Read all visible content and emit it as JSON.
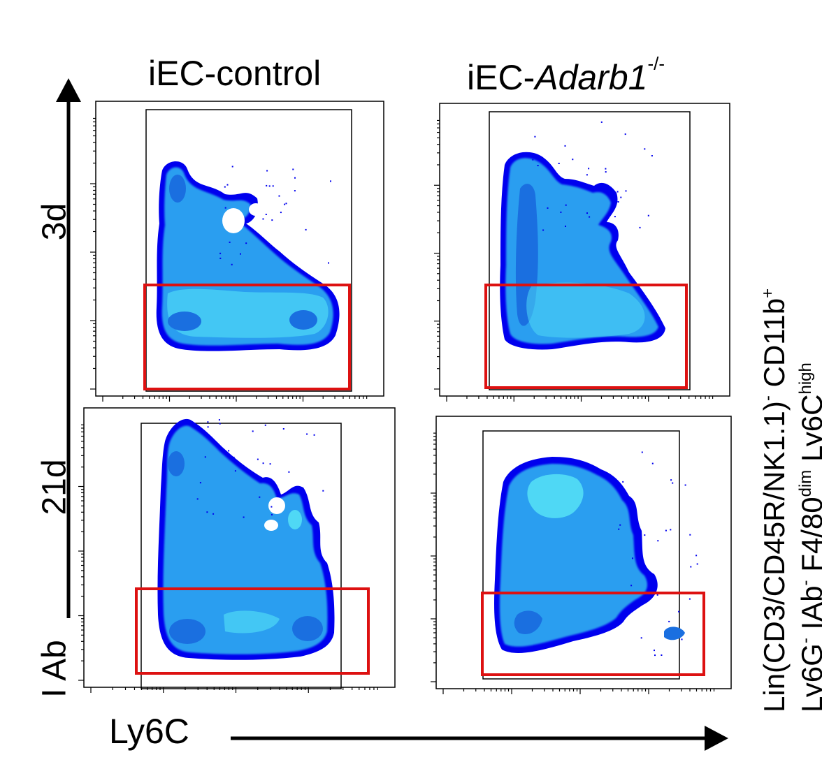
{
  "columns": {
    "control": "iEC-control",
    "ko_prefix": "iEC-",
    "ko_gene": "Adarb1",
    "ko_sup": "-/-"
  },
  "rows": {
    "early": "3d",
    "late": "21d"
  },
  "axes": {
    "y": "I Ab",
    "x": "Ly6C"
  },
  "population_label": {
    "line1": "Lin(CD3/CD45R/NK1.1)",
    "line1_sup": "-",
    "line1_tail": " CD11b",
    "line1_tail_sup": "+",
    "line2": "Ly6G",
    "line2_sup1": "-",
    "line2_mid": " IAb",
    "line2_sup2": "-",
    "line2_mid2": " F4/80",
    "line2_sup3": "dim",
    "line2_tail": " Ly6C",
    "line2_sup4": "high"
  },
  "colors": {
    "gate": "#dd1111",
    "density_low": "#0000ee",
    "density_high": "#4fd8f5",
    "frame": "#000000"
  },
  "chart_data": {
    "type": "heatmap",
    "description_mode": "flow-cytometry density plots, 2x2 grid",
    "x_axis": "Ly6C",
    "y_axis": "I Ab",
    "panels": [
      {
        "row": "3d",
        "column": "iEC-control"
      },
      {
        "row": "3d",
        "column": "iEC-Adarb1-/-"
      },
      {
        "row": "21d",
        "column": "iEC-control"
      },
      {
        "row": "21d",
        "column": "iEC-Adarb1-/-"
      }
    ]
  }
}
